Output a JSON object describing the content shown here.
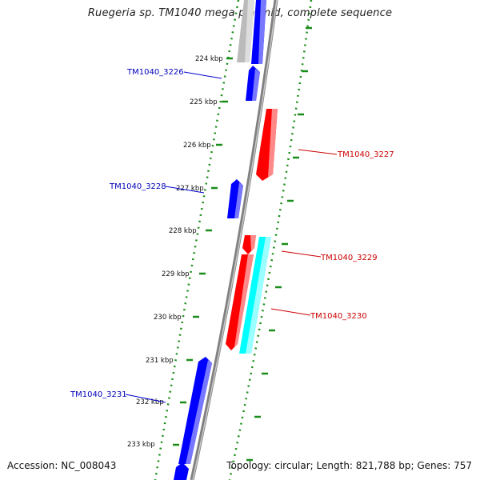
{
  "title": "Ruegeria sp. TM1040 mega plasmid, complete sequence",
  "footer": {
    "accession": "Accession: NC_008043",
    "topology": "Topology: circular; Length: 821,788 bp; Genes: 757"
  },
  "colors": {
    "forward_strand": "#ff0000",
    "reverse_strand": "#0000ff",
    "cyan_feature": "#00ffff",
    "gray_feature": "#bbbbbb",
    "backbone": "#808080",
    "ruler_ticks": "#1a8c1a",
    "label_forward": "#cc0000",
    "label_reverse": "#0000bb"
  },
  "ruler": {
    "ticks": [
      "224 kbp",
      "225 kbp",
      "226 kbp",
      "227 kbp",
      "228 kbp",
      "229 kbp",
      "230 kbp",
      "231 kbp",
      "232 kbp",
      "233 kbp"
    ]
  },
  "gene_labels": [
    {
      "id": "TM1040_3226",
      "strand": "reverse"
    },
    {
      "id": "TM1040_3227",
      "strand": "forward"
    },
    {
      "id": "TM1040_3228",
      "strand": "reverse"
    },
    {
      "id": "TM1040_3229",
      "strand": "forward"
    },
    {
      "id": "TM1040_3230",
      "strand": "forward"
    },
    {
      "id": "TM1040_3231",
      "strand": "reverse"
    }
  ]
}
